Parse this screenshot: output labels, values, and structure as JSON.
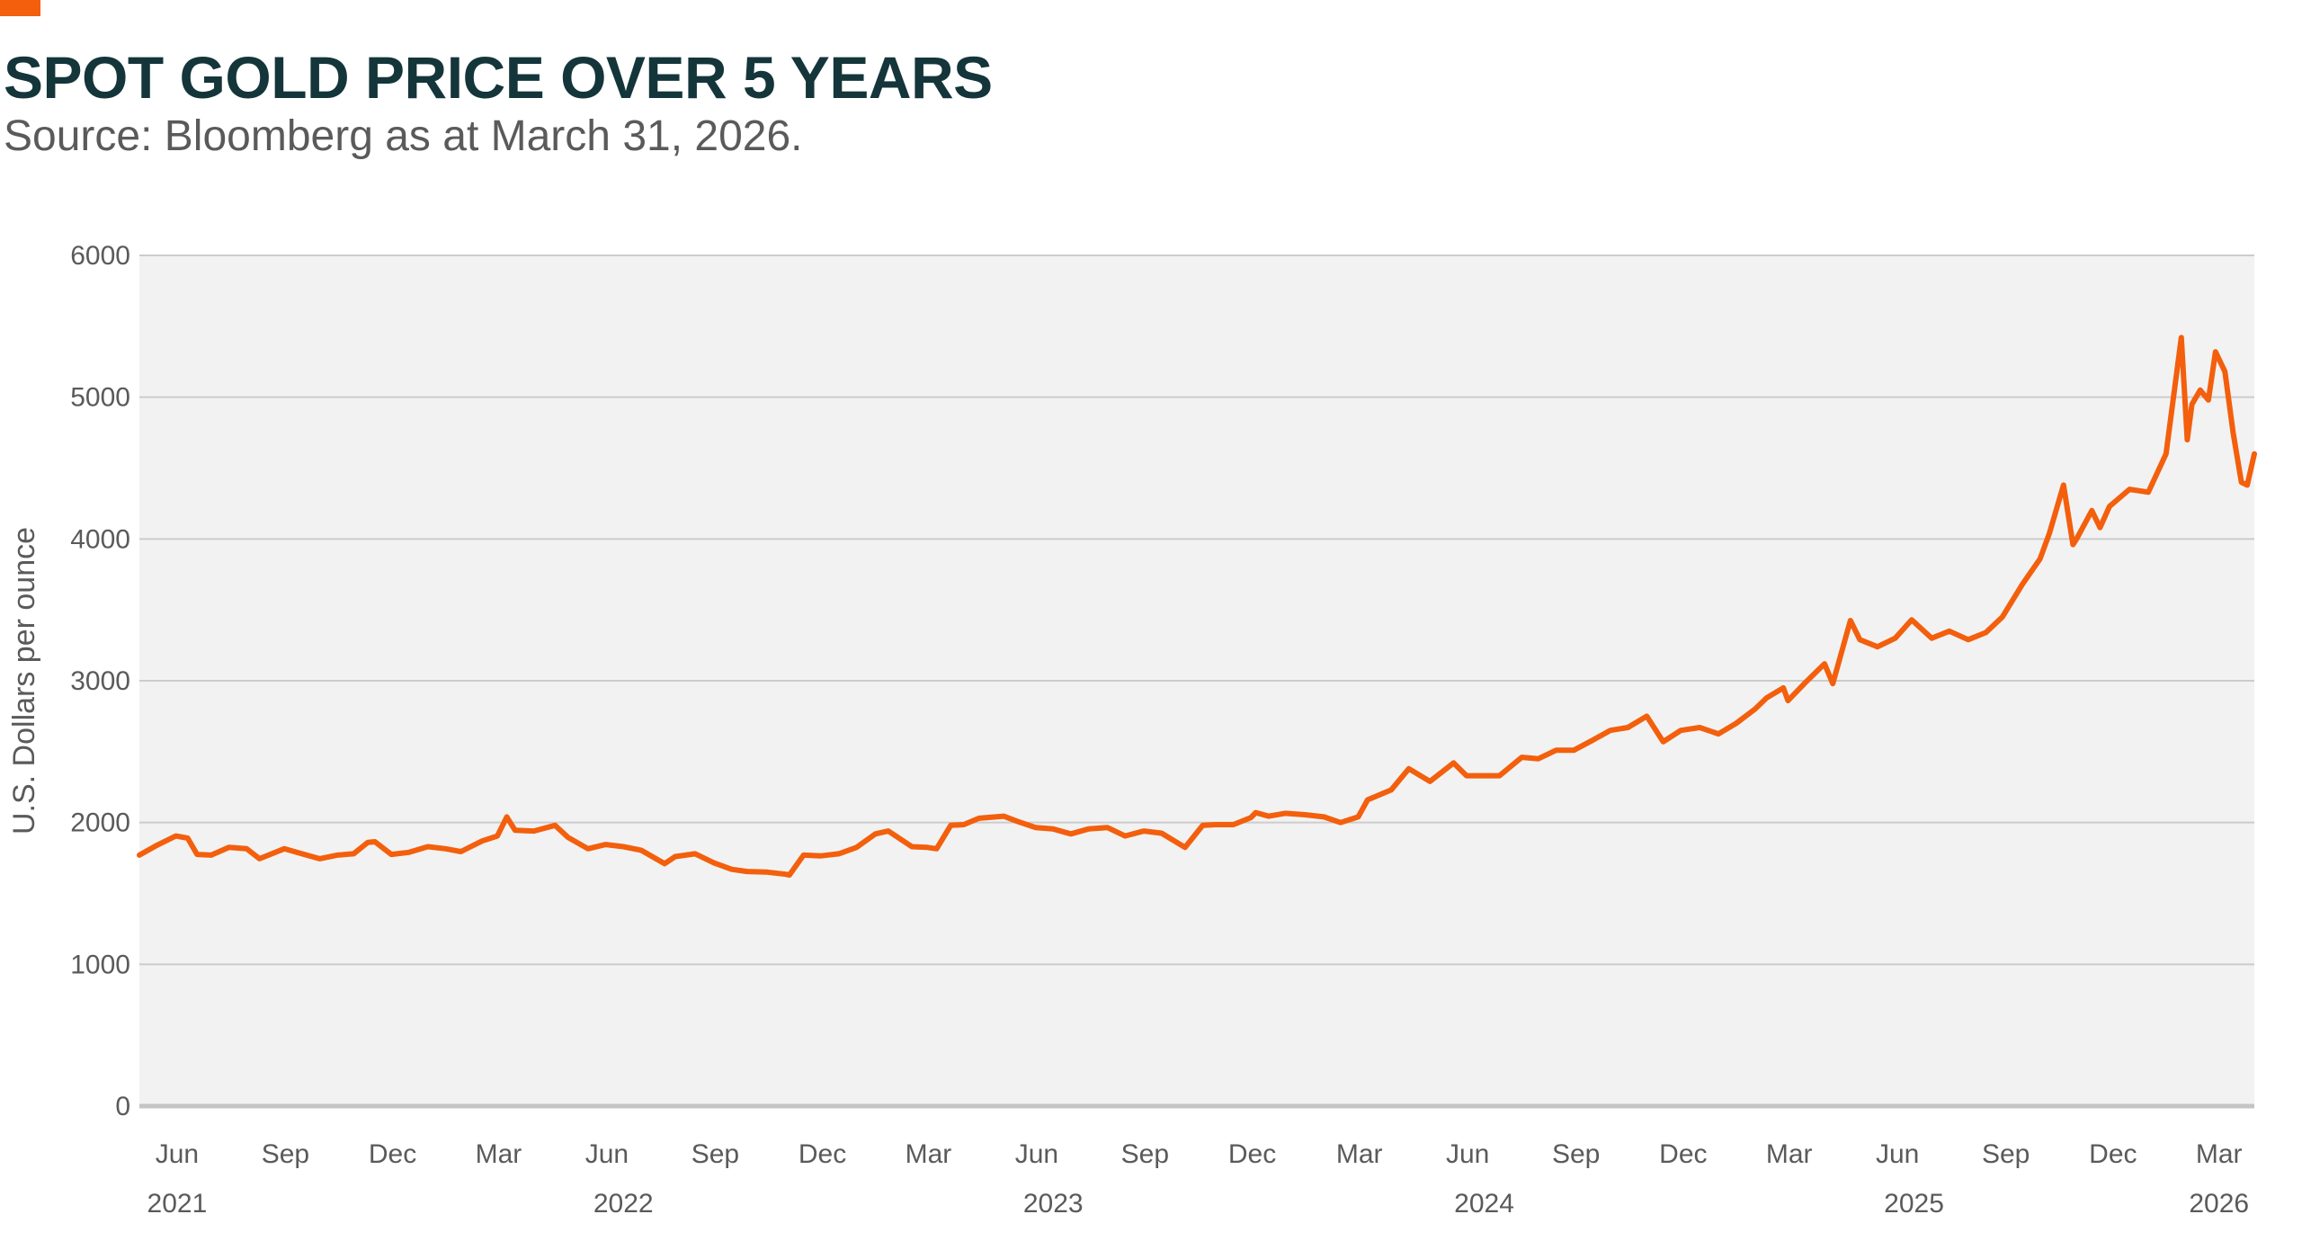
{
  "title": "SPOT GOLD PRICE OVER 5 YEARS",
  "subtitle": "Source: Bloomberg as at March 31, 2026.",
  "colors": {
    "accent": "#f35f0c",
    "series": "#f35f0c",
    "plot_background": "#f2f2f2",
    "grid": "#cccccc",
    "text": "#5a5a5a",
    "title": "#14353a"
  },
  "chart_data": {
    "type": "line",
    "title": "SPOT GOLD PRICE OVER 5 YEARS",
    "subtitle": "Source: Bloomberg as at March 31, 2026.",
    "xlabel": "",
    "ylabel": "U.S. Dollars per ounce",
    "ylim": [
      0,
      6000
    ],
    "xlim": [
      "2021-04-30",
      "2026-03-31"
    ],
    "yticks": [
      0,
      1000,
      2000,
      3000,
      4000,
      5000,
      6000
    ],
    "grid": "horizontal",
    "legend": "none",
    "xticks": [
      {
        "label": "Jun",
        "date": "2021-06-01"
      },
      {
        "label": "Sep",
        "date": "2021-09-01"
      },
      {
        "label": "Dec",
        "date": "2021-12-01"
      },
      {
        "label": "Mar",
        "date": "2022-03-01"
      },
      {
        "label": "Jun",
        "date": "2022-06-01"
      },
      {
        "label": "Sep",
        "date": "2022-09-01"
      },
      {
        "label": "Dec",
        "date": "2022-12-01"
      },
      {
        "label": "Mar",
        "date": "2023-03-01"
      },
      {
        "label": "Jun",
        "date": "2023-06-01"
      },
      {
        "label": "Sep",
        "date": "2023-09-01"
      },
      {
        "label": "Dec",
        "date": "2023-12-01"
      },
      {
        "label": "Mar",
        "date": "2024-03-01"
      },
      {
        "label": "Jun",
        "date": "2024-06-01"
      },
      {
        "label": "Sep",
        "date": "2024-09-01"
      },
      {
        "label": "Dec",
        "date": "2024-12-01"
      },
      {
        "label": "Mar",
        "date": "2025-03-01"
      },
      {
        "label": "Jun",
        "date": "2025-06-01"
      },
      {
        "label": "Sep",
        "date": "2025-09-01"
      },
      {
        "label": "Dec",
        "date": "2025-12-01"
      },
      {
        "label": "Mar",
        "date": "2026-03-01"
      }
    ],
    "year_labels": [
      {
        "label": "2021",
        "date": "2021-06-01"
      },
      {
        "label": "2022",
        "date": "2022-06-15"
      },
      {
        "label": "2023",
        "date": "2023-06-15"
      },
      {
        "label": "2024",
        "date": "2024-06-15"
      },
      {
        "label": "2025",
        "date": "2025-06-15"
      },
      {
        "label": "2026",
        "date": "2026-03-01"
      }
    ],
    "series": [
      {
        "x": [
          "2021-04-30",
          "2021-05-15",
          "2021-05-31",
          "2021-06-10",
          "2021-06-18",
          "2021-06-30",
          "2021-07-15",
          "2021-07-30",
          "2021-08-10",
          "2021-08-31",
          "2021-09-15",
          "2021-09-30",
          "2021-10-15",
          "2021-10-29",
          "2021-11-10",
          "2021-11-16",
          "2021-11-30",
          "2021-12-15",
          "2021-12-31",
          "2022-01-15",
          "2022-01-28",
          "2022-02-15",
          "2022-02-28",
          "2022-03-08",
          "2022-03-15",
          "2022-03-31",
          "2022-04-18",
          "2022-04-29",
          "2022-05-16",
          "2022-05-31",
          "2022-06-15",
          "2022-06-30",
          "2022-07-20",
          "2022-07-29",
          "2022-08-15",
          "2022-08-31",
          "2022-09-15",
          "2022-09-28",
          "2022-10-15",
          "2022-10-31",
          "2022-11-03",
          "2022-11-15",
          "2022-11-30",
          "2022-12-15",
          "2022-12-30",
          "2023-01-15",
          "2023-01-26",
          "2023-02-15",
          "2023-02-28",
          "2023-03-08",
          "2023-03-20",
          "2023-03-31",
          "2023-04-13",
          "2023-05-04",
          "2023-05-15",
          "2023-05-31",
          "2023-06-15",
          "2023-06-30",
          "2023-07-15",
          "2023-07-31",
          "2023-08-15",
          "2023-08-31",
          "2023-09-15",
          "2023-10-05",
          "2023-10-20",
          "2023-10-31",
          "2023-11-15",
          "2023-11-30",
          "2023-12-04",
          "2023-12-15",
          "2023-12-29",
          "2024-01-15",
          "2024-01-31",
          "2024-02-14",
          "2024-02-29",
          "2024-03-08",
          "2024-03-28",
          "2024-04-12",
          "2024-04-30",
          "2024-05-20",
          "2024-05-31",
          "2024-06-15",
          "2024-06-28",
          "2024-07-17",
          "2024-07-31",
          "2024-08-15",
          "2024-08-30",
          "2024-09-15",
          "2024-09-30",
          "2024-10-15",
          "2024-10-31",
          "2024-11-14",
          "2024-11-29",
          "2024-12-15",
          "2024-12-31",
          "2025-01-15",
          "2025-01-31",
          "2025-02-10",
          "2025-02-24",
          "2025-02-28",
          "2025-03-15",
          "2025-03-31",
          "2025-04-07",
          "2025-04-22",
          "2025-04-30",
          "2025-05-15",
          "2025-05-30",
          "2025-06-13",
          "2025-06-30",
          "2025-07-15",
          "2025-07-31",
          "2025-08-15",
          "2025-08-29",
          "2025-09-15",
          "2025-09-30",
          "2025-10-08",
          "2025-10-20",
          "2025-10-28",
          "2025-10-31",
          "2025-11-13",
          "2025-11-20",
          "2025-11-28",
          "2025-12-15",
          "2025-12-31",
          "2026-01-15",
          "2026-01-28",
          "2026-02-02",
          "2026-02-06",
          "2026-02-13",
          "2026-02-20",
          "2026-02-26",
          "2026-03-06",
          "2026-03-13",
          "2026-03-20",
          "2026-03-25",
          "2026-03-31"
        ],
        "y": [
          1770,
          1840,
          1905,
          1890,
          1775,
          1770,
          1825,
          1815,
          1745,
          1815,
          1780,
          1745,
          1770,
          1780,
          1860,
          1865,
          1775,
          1790,
          1830,
          1815,
          1795,
          1870,
          1905,
          2040,
          1945,
          1940,
          1980,
          1895,
          1815,
          1845,
          1830,
          1805,
          1710,
          1760,
          1780,
          1715,
          1670,
          1655,
          1650,
          1635,
          1630,
          1770,
          1765,
          1780,
          1825,
          1920,
          1940,
          1830,
          1825,
          1815,
          1980,
          1985,
          2030,
          2045,
          2010,
          1965,
          1955,
          1920,
          1955,
          1965,
          1905,
          1940,
          1925,
          1825,
          1980,
          1985,
          1985,
          2035,
          2070,
          2045,
          2065,
          2055,
          2040,
          2000,
          2040,
          2160,
          2230,
          2380,
          2290,
          2420,
          2330,
          2330,
          2330,
          2460,
          2450,
          2510,
          2510,
          2580,
          2650,
          2670,
          2750,
          2570,
          2650,
          2670,
          2625,
          2700,
          2800,
          2880,
          2950,
          2860,
          2990,
          3120,
          2980,
          3425,
          3290,
          3240,
          3300,
          3430,
          3300,
          3350,
          3290,
          3340,
          3450,
          3680,
          3860,
          4040,
          4380,
          3960,
          4000,
          4200,
          4080,
          4230,
          4350,
          4330,
          4600,
          5420,
          4700,
          4950,
          5050,
          4980,
          5320,
          5180,
          4750,
          4400,
          4380,
          4600
        ]
      }
    ]
  }
}
